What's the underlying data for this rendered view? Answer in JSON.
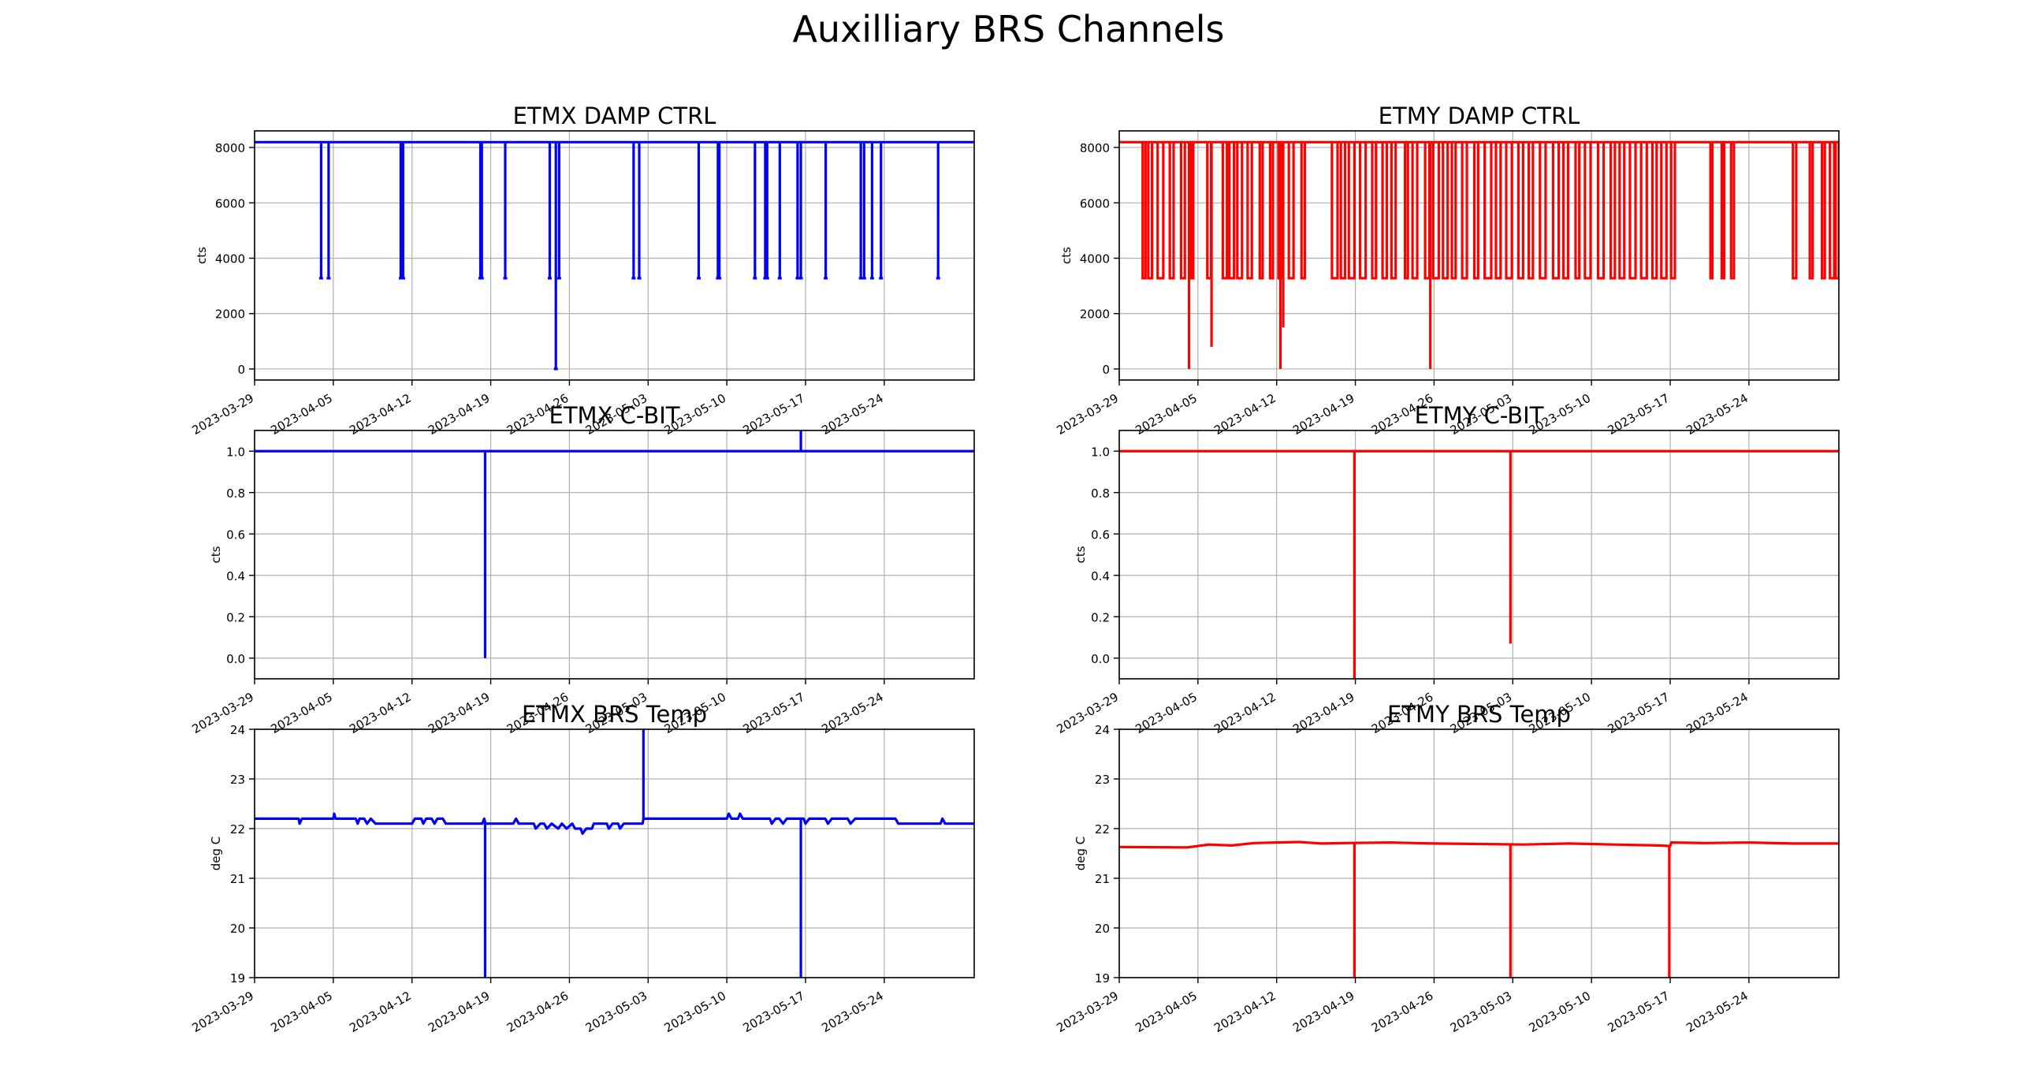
{
  "title": "Auxilliary BRS Channels",
  "x_ticks": [
    "2023-03-29",
    "2023-04-05",
    "2023-04-12",
    "2023-04-19",
    "2023-04-26",
    "2023-05-03",
    "2023-05-10",
    "2023-05-17",
    "2023-05-24"
  ],
  "colors": {
    "etmx": "#0000ff",
    "etmy": "#ff0000"
  },
  "chart_data": [
    {
      "id": "etmx_damp",
      "type": "line",
      "title": "ETMX DAMP CTRL",
      "ylabel": "cts",
      "xlim": [
        "2023-03-29",
        "2023-06-01"
      ],
      "ylim": [
        -400,
        8600
      ],
      "yticks": [
        0,
        2000,
        4000,
        6000,
        8000
      ],
      "ytick_labels": [
        "0",
        "2000",
        "4000",
        "6000",
        "8000"
      ],
      "grid": true,
      "color": "#0000ff",
      "baseline": 8192,
      "drops": [
        {
          "x": "2023-04-03 22:00",
          "y": 3277
        },
        {
          "x": "2023-04-04 14:00",
          "y": 3277
        },
        {
          "x": "2023-04-11 00:00",
          "y": 3277
        },
        {
          "x": "2023-04-11 05:00",
          "y": 3277
        },
        {
          "x": "2023-04-18 02:00",
          "y": 3277
        },
        {
          "x": "2023-04-18 05:00",
          "y": 3277
        },
        {
          "x": "2023-04-20 07:00",
          "y": 3277
        },
        {
          "x": "2023-04-24 06:00",
          "y": 3277
        },
        {
          "x": "2023-04-24 19:00",
          "y": 0
        },
        {
          "x": "2023-04-25 02:00",
          "y": 3277
        },
        {
          "x": "2023-05-01 17:00",
          "y": 3277
        },
        {
          "x": "2023-05-02 05:00",
          "y": 3277
        },
        {
          "x": "2023-05-07 12:00",
          "y": 3277
        },
        {
          "x": "2023-05-09 05:00",
          "y": 3277
        },
        {
          "x": "2023-05-09 08:00",
          "y": 3277
        },
        {
          "x": "2023-05-12 12:00",
          "y": 3277
        },
        {
          "x": "2023-05-13 10:00",
          "y": 3277
        },
        {
          "x": "2023-05-13 14:00",
          "y": 3277
        },
        {
          "x": "2023-05-14 17:00",
          "y": 3277
        },
        {
          "x": "2023-05-16 07:00",
          "y": 3277
        },
        {
          "x": "2023-05-16 14:00",
          "y": 3277
        },
        {
          "x": "2023-05-18 19:00",
          "y": 3277
        },
        {
          "x": "2023-05-21 22:00",
          "y": 3277
        },
        {
          "x": "2023-05-22 05:00",
          "y": 3277
        },
        {
          "x": "2023-05-22 22:00",
          "y": 3277
        },
        {
          "x": "2023-05-23 17:00",
          "y": 3277
        },
        {
          "x": "2023-05-28 19:00",
          "y": 3277
        }
      ]
    },
    {
      "id": "etmy_damp",
      "type": "line",
      "title": "ETMY DAMP CTRL",
      "ylabel": "cts",
      "xlim": [
        "2023-03-29",
        "2023-06-01"
      ],
      "ylim": [
        -400,
        8600
      ],
      "yticks": [
        0,
        2000,
        4000,
        6000,
        8000
      ],
      "ytick_labels": [
        "0",
        "2000",
        "4000",
        "6000",
        "8000"
      ],
      "grid": true,
      "color": "#ff0000",
      "baseline": 8192,
      "level": 3277,
      "segments": [
        [
          "2023-03-31 02:00",
          "2023-03-31 08:00"
        ],
        [
          "2023-03-31 14:00",
          "2023-03-31 22:00"
        ],
        [
          "2023-04-01 10:00",
          "2023-04-01 22:00"
        ],
        [
          "2023-04-02 12:00",
          "2023-04-02 20:00"
        ],
        [
          "2023-04-03 12:00",
          "2023-04-03 20:00"
        ],
        [
          "2023-04-04 10:00",
          "2023-04-04 14:00"
        ],
        [
          "2023-04-05 20:00",
          "2023-04-06 04:00"
        ],
        [
          "2023-04-07 05:00",
          "2023-04-07 14:00"
        ],
        [
          "2023-04-07 19:00",
          "2023-04-08 05:00"
        ],
        [
          "2023-04-08 12:00",
          "2023-04-08 22:00"
        ],
        [
          "2023-04-09 10:00",
          "2023-04-09 19:00"
        ],
        [
          "2023-04-10 12:00",
          "2023-04-10 18:00"
        ],
        [
          "2023-04-11 10:00",
          "2023-04-11 16:00"
        ],
        [
          "2023-04-12 04:00",
          "2023-04-12 12:00"
        ],
        [
          "2023-04-13 02:00",
          "2023-04-13 12:00"
        ],
        [
          "2023-04-14 05:00",
          "2023-04-14 12:00"
        ],
        [
          "2023-04-16 22:00",
          "2023-04-17 10:00"
        ],
        [
          "2023-04-17 17:00",
          "2023-04-18 02:00"
        ],
        [
          "2023-04-18 10:00",
          "2023-04-18 22:00"
        ],
        [
          "2023-04-19 10:00",
          "2023-04-19 22:00"
        ],
        [
          "2023-04-20 12:00",
          "2023-04-20 20:00"
        ],
        [
          "2023-04-21 10:00",
          "2023-04-21 19:00"
        ],
        [
          "2023-04-22 05:00",
          "2023-04-22 14:00"
        ],
        [
          "2023-04-23 10:00",
          "2023-04-23 16:00"
        ],
        [
          "2023-04-24 02:00",
          "2023-04-24 12:00"
        ],
        [
          "2023-04-25 05:00",
          "2023-04-25 14:00"
        ],
        [
          "2023-04-25 22:00",
          "2023-04-26 10:00"
        ],
        [
          "2023-04-26 19:00",
          "2023-04-27 05:00"
        ],
        [
          "2023-04-27 14:00",
          "2023-04-27 22:00"
        ],
        [
          "2023-04-28 12:00",
          "2023-04-28 22:00"
        ],
        [
          "2023-04-29 14:00",
          "2023-04-29 22:00"
        ],
        [
          "2023-04-30 12:00",
          "2023-05-01 02:00"
        ],
        [
          "2023-05-01 12:00",
          "2023-05-01 22:00"
        ],
        [
          "2023-05-02 10:00",
          "2023-05-02 22:00"
        ],
        [
          "2023-05-03 12:00",
          "2023-05-03 22:00"
        ],
        [
          "2023-05-04 10:00",
          "2023-05-04 19:00"
        ],
        [
          "2023-05-05 10:00",
          "2023-05-05 22:00"
        ],
        [
          "2023-05-06 14:00",
          "2023-05-07 02:00"
        ],
        [
          "2023-05-07 12:00",
          "2023-05-07 22:00"
        ],
        [
          "2023-05-08 14:00",
          "2023-05-08 22:00"
        ],
        [
          "2023-05-09 10:00",
          "2023-05-09 22:00"
        ],
        [
          "2023-05-10 14:00",
          "2023-05-11 02:00"
        ],
        [
          "2023-05-11 17:00",
          "2023-05-12 02:00"
        ],
        [
          "2023-05-12 12:00",
          "2023-05-12 22:00"
        ],
        [
          "2023-05-13 10:00",
          "2023-05-13 22:00"
        ],
        [
          "2023-05-14 10:00",
          "2023-05-14 22:00"
        ],
        [
          "2023-05-15 10:00",
          "2023-05-15 19:00"
        ],
        [
          "2023-05-16 05:00",
          "2023-05-16 16:00"
        ],
        [
          "2023-05-17 02:00",
          "2023-05-17 10:00"
        ],
        [
          "2023-05-20 14:00",
          "2023-05-20 18:00"
        ],
        [
          "2023-05-21 14:00",
          "2023-05-21 19:00"
        ],
        [
          "2023-05-22 10:00",
          "2023-05-22 16:00"
        ],
        [
          "2023-05-27 22:00",
          "2023-05-28 05:00"
        ],
        [
          "2023-05-29 10:00",
          "2023-05-29 16:00"
        ],
        [
          "2023-05-30 12:00",
          "2023-05-30 18:00"
        ],
        [
          "2023-05-31 05:00",
          "2023-05-31 14:00"
        ],
        [
          "2023-05-31 17:00",
          "2023-06-01 00:00"
        ]
      ],
      "spikes": [
        {
          "x": "2023-04-04 05:00",
          "y": 0
        },
        {
          "x": "2023-04-06 05:00",
          "y": 800
        },
        {
          "x": "2023-04-12 08:00",
          "y": 0
        },
        {
          "x": "2023-04-12 14:00",
          "y": 1500
        },
        {
          "x": "2023-04-25 16:00",
          "y": 0
        }
      ]
    },
    {
      "id": "etmx_cbit",
      "type": "line",
      "title": "ETMX C-BIT",
      "ylabel": "cts",
      "xlim": [
        "2023-03-29",
        "2023-06-01"
      ],
      "ylim": [
        -0.1,
        1.1
      ],
      "yticks": [
        0,
        0.2,
        0.4,
        0.6,
        0.8,
        1.0
      ],
      "ytick_labels": [
        "0.0",
        "0.2",
        "0.4",
        "0.6",
        "0.8",
        "1.0"
      ],
      "grid": true,
      "color": "#0000ff",
      "baseline": 1,
      "spikes": [
        {
          "x": "2023-04-18 12:00",
          "y": 0
        },
        {
          "x": "2023-05-16 14:00",
          "y": 1.1
        }
      ]
    },
    {
      "id": "etmy_cbit",
      "type": "line",
      "title": "ETMY C-BIT",
      "ylabel": "cts",
      "xlim": [
        "2023-03-29",
        "2023-06-01"
      ],
      "ylim": [
        -0.1,
        1.1
      ],
      "yticks": [
        0,
        0.2,
        0.4,
        0.6,
        0.8,
        1.0
      ],
      "ytick_labels": [
        "0.0",
        "0.2",
        "0.4",
        "0.6",
        "0.8",
        "1.0"
      ],
      "grid": true,
      "color": "#ff0000",
      "baseline": 1,
      "spikes": [
        {
          "x": "2023-04-18 22:00",
          "y": -0.1
        },
        {
          "x": "2023-05-02 19:00",
          "y": 0.07
        }
      ]
    },
    {
      "id": "etmx_temp",
      "type": "line",
      "title": "ETMX BRS Temp",
      "ylabel": "deg C",
      "xlim": [
        "2023-03-29",
        "2023-06-01"
      ],
      "ylim": [
        19,
        24
      ],
      "yticks": [
        19,
        20,
        21,
        22,
        23,
        24
      ],
      "ytick_labels": [
        "19",
        "20",
        "21",
        "22",
        "23",
        "24"
      ],
      "grid": true,
      "color": "#0000ff",
      "points": [
        [
          "2023-03-29 00:00",
          22.2
        ],
        [
          "2023-04-01 22:00",
          22.2
        ],
        [
          "2023-04-02 00:00",
          22.1
        ],
        [
          "2023-04-02 05:00",
          22.2
        ],
        [
          "2023-04-05 00:00",
          22.2
        ],
        [
          "2023-04-05 02:00",
          22.3
        ],
        [
          "2023-04-05 05:00",
          22.2
        ],
        [
          "2023-04-07 00:00",
          22.2
        ],
        [
          "2023-04-07 04:00",
          22.1
        ],
        [
          "2023-04-07 08:00",
          22.2
        ],
        [
          "2023-04-07 18:00",
          22.2
        ],
        [
          "2023-04-08 00:00",
          22.1
        ],
        [
          "2023-04-08 08:00",
          22.2
        ],
        [
          "2023-04-08 18:00",
          22.1
        ],
        [
          "2023-04-12 00:00",
          22.1
        ],
        [
          "2023-04-12 06:00",
          22.2
        ],
        [
          "2023-04-12 20:00",
          22.2
        ],
        [
          "2023-04-13 00:00",
          22.1
        ],
        [
          "2023-04-13 06:00",
          22.2
        ],
        [
          "2023-04-13 18:00",
          22.2
        ],
        [
          "2023-04-14 00:00",
          22.1
        ],
        [
          "2023-04-14 06:00",
          22.2
        ],
        [
          "2023-04-14 18:00",
          22.2
        ],
        [
          "2023-04-15 00:00",
          22.1
        ],
        [
          "2023-04-18 06:00",
          22.1
        ],
        [
          "2023-04-18 10:00",
          22.2
        ],
        [
          "2023-04-18 13:00",
          22.1
        ],
        [
          "2023-04-21 00:00",
          22.1
        ],
        [
          "2023-04-21 06:00",
          22.2
        ],
        [
          "2023-04-21 12:00",
          22.1
        ],
        [
          "2023-04-22 20:00",
          22.1
        ],
        [
          "2023-04-23 00:00",
          22.0
        ],
        [
          "2023-04-23 10:00",
          22.1
        ],
        [
          "2023-04-23 18:00",
          22.1
        ],
        [
          "2023-04-24 00:00",
          22.0
        ],
        [
          "2023-04-24 10:00",
          22.1
        ],
        [
          "2023-04-25 00:00",
          22.0
        ],
        [
          "2023-04-25 08:00",
          22.1
        ],
        [
          "2023-04-25 18:00",
          22.0
        ],
        [
          "2023-04-26 06:00",
          22.1
        ],
        [
          "2023-04-26 12:00",
          22.0
        ],
        [
          "2023-04-27 00:00",
          22.0
        ],
        [
          "2023-04-27 04:00",
          21.9
        ],
        [
          "2023-04-27 12:00",
          22.0
        ],
        [
          "2023-04-28 00:00",
          22.0
        ],
        [
          "2023-04-28 04:00",
          22.1
        ],
        [
          "2023-04-29 08:00",
          22.1
        ],
        [
          "2023-04-29 12:00",
          22.0
        ],
        [
          "2023-04-29 20:00",
          22.1
        ],
        [
          "2023-04-30 08:00",
          22.1
        ],
        [
          "2023-04-30 12:00",
          22.0
        ],
        [
          "2023-04-30 20:00",
          22.1
        ],
        [
          "2023-05-02 12:00",
          22.1
        ],
        [
          "2023-05-02 14:00",
          22.2
        ],
        [
          "2023-05-10 00:00",
          22.2
        ],
        [
          "2023-05-10 04:00",
          22.3
        ],
        [
          "2023-05-10 10:00",
          22.2
        ],
        [
          "2023-05-11 00:00",
          22.2
        ],
        [
          "2023-05-11 04:00",
          22.3
        ],
        [
          "2023-05-11 10:00",
          22.2
        ],
        [
          "2023-05-13 20:00",
          22.2
        ],
        [
          "2023-05-14 00:00",
          22.1
        ],
        [
          "2023-05-14 08:00",
          22.2
        ],
        [
          "2023-05-14 16:00",
          22.2
        ],
        [
          "2023-05-15 00:00",
          22.1
        ],
        [
          "2023-05-15 08:00",
          22.2
        ],
        [
          "2023-05-16 20:00",
          22.2
        ],
        [
          "2023-05-17 00:00",
          22.1
        ],
        [
          "2023-05-17 08:00",
          22.2
        ],
        [
          "2023-05-18 18:00",
          22.2
        ],
        [
          "2023-05-19 00:00",
          22.1
        ],
        [
          "2023-05-19 08:00",
          22.2
        ],
        [
          "2023-05-20 18:00",
          22.2
        ],
        [
          "2023-05-21 00:00",
          22.1
        ],
        [
          "2023-05-21 10:00",
          22.2
        ],
        [
          "2023-05-25 00:00",
          22.2
        ],
        [
          "2023-05-25 06:00",
          22.1
        ],
        [
          "2023-05-29 00:00",
          22.1
        ],
        [
          "2023-05-29 04:00",
          22.2
        ],
        [
          "2023-05-29 10:00",
          22.1
        ],
        [
          "2023-06-01 00:00",
          22.1
        ]
      ],
      "spikes": [
        {
          "x": "2023-04-18 12:00",
          "y": 19
        },
        {
          "x": "2023-05-02 14:00",
          "y": 24
        },
        {
          "x": "2023-05-16 14:00",
          "y": 19
        }
      ]
    },
    {
      "id": "etmy_temp",
      "type": "line",
      "title": "ETMY BRS Temp",
      "ylabel": "deg C",
      "xlim": [
        "2023-03-29",
        "2023-06-01"
      ],
      "ylim": [
        19,
        24
      ],
      "yticks": [
        19,
        20,
        21,
        22,
        23,
        24
      ],
      "ytick_labels": [
        "19",
        "20",
        "21",
        "22",
        "23",
        "24"
      ],
      "grid": true,
      "color": "#ff0000",
      "points": [
        [
          "2023-03-29 00:00",
          21.63
        ],
        [
          "2023-04-04 00:00",
          21.62
        ],
        [
          "2023-04-06 00:00",
          21.68
        ],
        [
          "2023-04-08 00:00",
          21.66
        ],
        [
          "2023-04-10 00:00",
          21.71
        ],
        [
          "2023-04-12 00:00",
          21.72
        ],
        [
          "2023-04-14 00:00",
          21.73
        ],
        [
          "2023-04-16 00:00",
          21.7
        ],
        [
          "2023-04-18 00:00",
          21.71
        ],
        [
          "2023-04-22 00:00",
          21.72
        ],
        [
          "2023-04-26 00:00",
          21.7
        ],
        [
          "2023-04-30 00:00",
          21.69
        ],
        [
          "2023-05-04 00:00",
          21.68
        ],
        [
          "2023-05-08 00:00",
          21.7
        ],
        [
          "2023-05-12 00:00",
          21.68
        ],
        [
          "2023-05-16 00:00",
          21.66
        ],
        [
          "2023-05-17 00:00",
          21.65
        ],
        [
          "2023-05-17 02:00",
          21.72
        ],
        [
          "2023-05-20 00:00",
          21.71
        ],
        [
          "2023-05-24 00:00",
          21.72
        ],
        [
          "2023-05-28 00:00",
          21.7
        ],
        [
          "2023-06-01 00:00",
          21.7
        ]
      ],
      "spikes": [
        {
          "x": "2023-04-18 22:00",
          "y": 19
        },
        {
          "x": "2023-05-02 19:00",
          "y": 19
        },
        {
          "x": "2023-05-16 22:00",
          "y": 19
        }
      ]
    }
  ]
}
